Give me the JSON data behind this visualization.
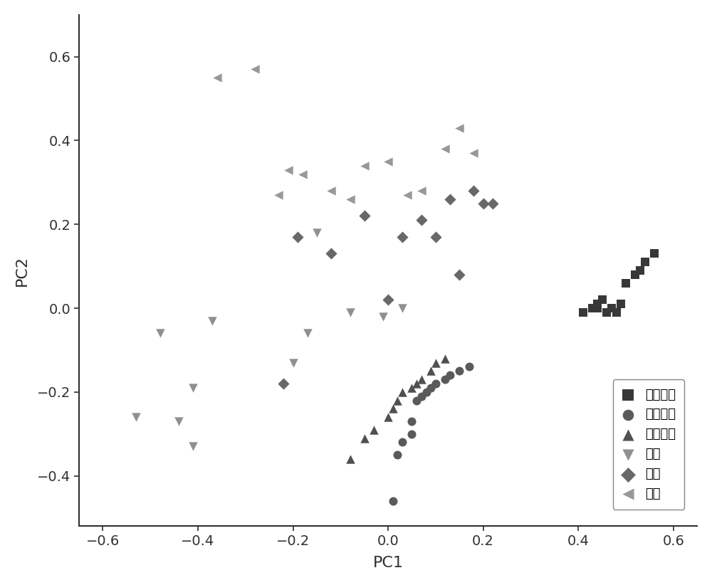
{
  "xlabel": "PC1",
  "ylabel": "PC2",
  "xlim": [
    -0.65,
    0.65
  ],
  "ylim": [
    -0.52,
    0.7
  ],
  "xticks": [
    -0.6,
    -0.4,
    -0.2,
    0.0,
    0.2,
    0.4,
    0.6
  ],
  "yticks": [
    -0.4,
    -0.2,
    0.0,
    0.2,
    0.4,
    0.6
  ],
  "background_color": "#ffffff",
  "axis_color": "#303030",
  "tick_labelsize": 14,
  "label_fontsize": 16,
  "series": {
    "特级一等": {
      "marker": "s",
      "color": "#383838",
      "size": 85,
      "x": [
        0.41,
        0.43,
        0.44,
        0.44,
        0.45,
        0.46,
        0.47,
        0.48,
        0.49,
        0.5,
        0.52,
        0.53,
        0.54,
        0.56
      ],
      "y": [
        -0.01,
        0.0,
        0.0,
        0.01,
        0.02,
        -0.01,
        0.0,
        -0.01,
        0.01,
        0.06,
        0.08,
        0.09,
        0.11,
        0.13
      ]
    },
    "特级二等": {
      "marker": "o",
      "color": "#5a5a5a",
      "size": 75,
      "x": [
        0.01,
        0.02,
        0.03,
        0.05,
        0.05,
        0.06,
        0.07,
        0.08,
        0.09,
        0.1,
        0.12,
        0.13,
        0.15,
        0.17
      ],
      "y": [
        -0.46,
        -0.35,
        -0.32,
        -0.3,
        -0.27,
        -0.22,
        -0.21,
        -0.2,
        -0.19,
        -0.18,
        -0.17,
        -0.16,
        -0.15,
        -0.14
      ]
    },
    "特级三等": {
      "marker": "^",
      "color": "#505050",
      "size": 80,
      "x": [
        -0.08,
        -0.05,
        -0.03,
        0.0,
        0.01,
        0.02,
        0.03,
        0.05,
        0.06,
        0.07,
        0.09,
        0.1,
        0.12
      ],
      "y": [
        -0.36,
        -0.31,
        -0.29,
        -0.26,
        -0.24,
        -0.22,
        -0.2,
        -0.19,
        -0.18,
        -0.17,
        -0.15,
        -0.13,
        -0.12
      ]
    },
    "一级": {
      "marker": "v",
      "color": "#909090",
      "size": 80,
      "x": [
        -0.53,
        -0.48,
        -0.44,
        -0.41,
        -0.41,
        -0.37,
        -0.2,
        -0.17,
        -0.15,
        -0.08,
        -0.01,
        0.03
      ],
      "y": [
        -0.26,
        -0.06,
        -0.27,
        -0.33,
        -0.19,
        -0.03,
        -0.13,
        -0.06,
        0.18,
        -0.01,
        -0.02,
        0.0
      ]
    },
    "二级": {
      "marker": "D",
      "color": "#686868",
      "size": 68,
      "x": [
        -0.22,
        -0.19,
        -0.12,
        -0.05,
        0.0,
        0.03,
        0.07,
        0.1,
        0.13,
        0.15,
        0.18,
        0.2,
        0.22
      ],
      "y": [
        -0.18,
        0.17,
        0.13,
        0.22,
        0.02,
        0.17,
        0.21,
        0.17,
        0.26,
        0.08,
        0.28,
        0.25,
        0.25
      ]
    },
    "三级": {
      "marker": "<",
      "color": "#989898",
      "size": 80,
      "x": [
        -0.36,
        -0.28,
        -0.23,
        -0.21,
        -0.18,
        -0.12,
        -0.08,
        -0.05,
        0.0,
        0.04,
        0.07,
        0.12,
        0.15,
        0.18
      ],
      "y": [
        0.55,
        0.57,
        0.27,
        0.33,
        0.32,
        0.28,
        0.26,
        0.34,
        0.35,
        0.27,
        0.28,
        0.38,
        0.43,
        0.37
      ]
    }
  }
}
